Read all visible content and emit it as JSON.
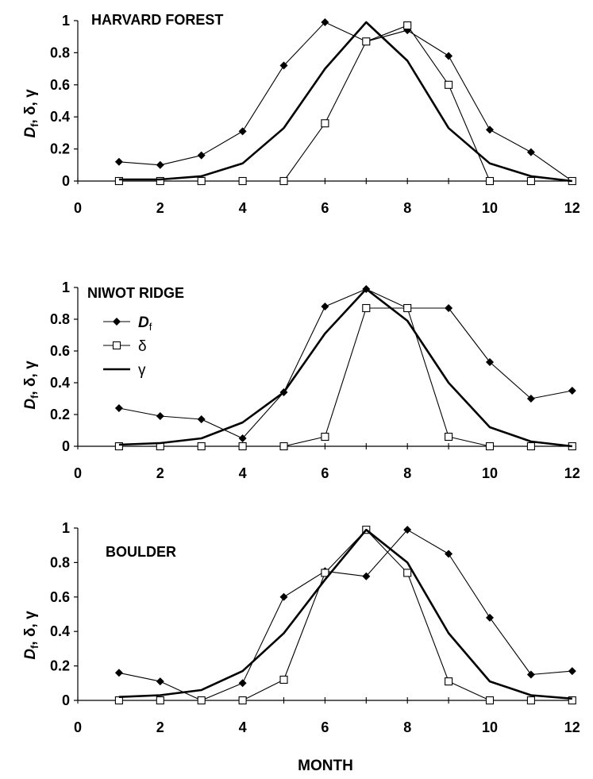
{
  "figure": {
    "xlabel": "MONTH"
  },
  "legend": {
    "entries": [
      {
        "series": "Df",
        "label": "D",
        "subscript": "f",
        "marker": "diamond"
      },
      {
        "series": "delta",
        "label": "δ",
        "marker": "square"
      },
      {
        "series": "gamma",
        "label": "γ",
        "marker": "none"
      }
    ]
  },
  "chart_data": [
    {
      "type": "line",
      "title": "HARVARD FOREST",
      "ylabel": "Df, δ, γ",
      "ylabel_parts": {
        "main": "D",
        "subscript": "f",
        "rest": ", δ, γ"
      },
      "xlim": [
        0,
        12
      ],
      "ylim": [
        0,
        1
      ],
      "xticks": [
        0,
        2,
        4,
        6,
        8,
        10,
        12
      ],
      "yticks": [
        0,
        0.2,
        0.4,
        0.6,
        0.8,
        1
      ],
      "ytick_labels": [
        "0",
        "0.2",
        "0.4",
        "0.6",
        "0.8",
        "1"
      ],
      "grid": false,
      "x": [
        1,
        2,
        3,
        4,
        5,
        6,
        7,
        8,
        9,
        10,
        11,
        12
      ],
      "series": [
        {
          "name": "Df",
          "marker": "diamond",
          "values": [
            0.12,
            0.1,
            0.16,
            0.31,
            0.72,
            0.99,
            0.87,
            0.94,
            0.78,
            0.32,
            0.18,
            0.0
          ]
        },
        {
          "name": "δ",
          "marker": "square",
          "values": [
            0.0,
            0.0,
            0.0,
            0.0,
            0.0,
            0.36,
            0.87,
            0.97,
            0.6,
            0.0,
            0.0,
            0.0
          ]
        },
        {
          "name": "γ",
          "marker": "none",
          "values": [
            0.01,
            0.01,
            0.03,
            0.11,
            0.33,
            0.7,
            0.99,
            0.75,
            0.33,
            0.11,
            0.03,
            0.0
          ]
        }
      ]
    },
    {
      "type": "line",
      "title": "NIWOT RIDGE",
      "ylabel": "Df, δ, γ",
      "ylabel_parts": {
        "main": "D",
        "subscript": "f",
        "rest": ", δ, γ"
      },
      "xlim": [
        0,
        12
      ],
      "ylim": [
        0,
        1
      ],
      "xticks": [
        0,
        2,
        4,
        6,
        8,
        10,
        12
      ],
      "yticks": [
        0,
        0.2,
        0.4,
        0.6,
        0.8,
        1
      ],
      "ytick_labels": [
        "0",
        "0.2",
        "0.4",
        "0.6",
        "0.8",
        "1"
      ],
      "grid": false,
      "legend": "upper-left",
      "x": [
        1,
        2,
        3,
        4,
        5,
        6,
        7,
        8,
        9,
        10,
        11,
        12
      ],
      "series": [
        {
          "name": "Df",
          "marker": "diamond",
          "values": [
            0.24,
            0.19,
            0.17,
            0.05,
            0.34,
            0.88,
            0.99,
            0.87,
            0.87,
            0.53,
            0.3,
            0.35
          ]
        },
        {
          "name": "δ",
          "marker": "square",
          "values": [
            0.0,
            0.0,
            0.0,
            0.0,
            0.0,
            0.06,
            0.87,
            0.87,
            0.06,
            0.0,
            0.0,
            0.0
          ]
        },
        {
          "name": "γ",
          "marker": "none",
          "values": [
            0.01,
            0.02,
            0.05,
            0.15,
            0.34,
            0.71,
            0.99,
            0.79,
            0.4,
            0.12,
            0.03,
            0.0
          ]
        }
      ]
    },
    {
      "type": "line",
      "title": "BOULDER",
      "ylabel": "Df, δ, γ",
      "ylabel_parts": {
        "main": "D",
        "subscript": "f",
        "rest": ", δ, γ"
      },
      "xlim": [
        0,
        12
      ],
      "ylim": [
        0,
        1
      ],
      "xticks": [
        0,
        2,
        4,
        6,
        8,
        10,
        12
      ],
      "yticks": [
        0,
        0.2,
        0.4,
        0.6,
        0.8,
        1
      ],
      "ytick_labels": [
        "0",
        "0.2",
        "0.4",
        "0.6",
        "0.8",
        "1"
      ],
      "grid": false,
      "x": [
        1,
        2,
        3,
        4,
        5,
        6,
        7,
        8,
        9,
        10,
        11,
        12
      ],
      "series": [
        {
          "name": "Df",
          "marker": "diamond",
          "values": [
            0.16,
            0.11,
            0.0,
            0.1,
            0.6,
            0.75,
            0.72,
            0.99,
            0.85,
            0.48,
            0.15,
            0.17
          ]
        },
        {
          "name": "δ",
          "marker": "square",
          "values": [
            0.0,
            0.0,
            0.0,
            0.0,
            0.12,
            0.74,
            0.99,
            0.74,
            0.11,
            0.0,
            0.0,
            0.0
          ]
        },
        {
          "name": "γ",
          "marker": "none",
          "values": [
            0.02,
            0.03,
            0.06,
            0.17,
            0.39,
            0.7,
            0.99,
            0.8,
            0.39,
            0.11,
            0.03,
            0.01
          ]
        }
      ]
    }
  ]
}
